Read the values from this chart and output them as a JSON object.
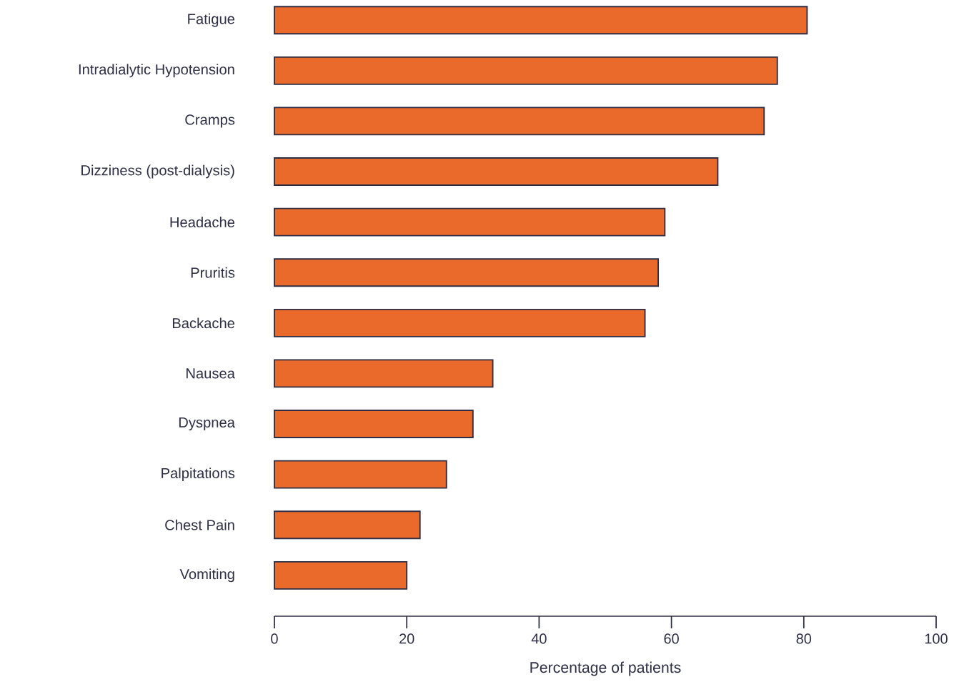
{
  "chart_data": {
    "type": "bar",
    "orientation": "horizontal",
    "xlabel": "Percentage of patients",
    "categories": [
      "Fatigue",
      "Intradialytic Hypotension",
      "Cramps",
      "Dizziness (post-dialysis)",
      "Headache",
      "Pruritis",
      "Backache",
      "Nausea",
      "Dyspnea",
      "Palpitations",
      "Chest Pain",
      "Vomiting"
    ],
    "values": [
      80.5,
      76,
      74,
      67,
      59,
      58,
      56,
      33,
      30,
      26,
      22,
      20
    ],
    "color": "#ea6a2c",
    "xlim": [
      0,
      100
    ],
    "xticks": [
      0,
      20,
      40,
      60,
      80,
      100
    ]
  }
}
